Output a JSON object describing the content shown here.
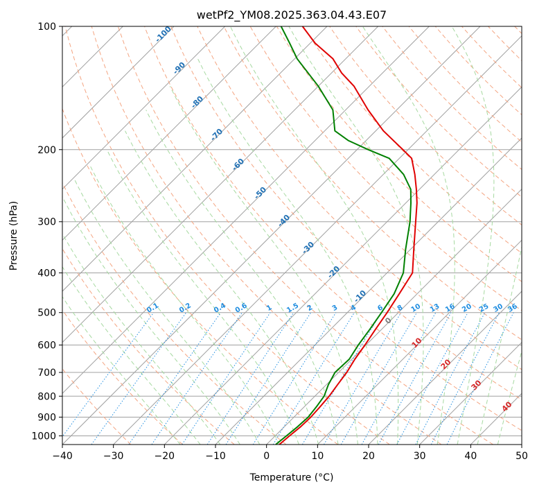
{
  "chart_data": {
    "type": "line",
    "title": "wetPf2_YM08.2025.363.04.43.E07",
    "xlabel": "Temperature (°C)",
    "ylabel": "Pressure (hPa)",
    "xlim": [
      -40,
      50
    ],
    "ylim": [
      1050,
      100
    ],
    "y_scale": "log",
    "skew": "skew-T",
    "grid": true,
    "x_ticks": [
      "-40",
      "-30",
      "-20",
      "-10",
      "0",
      "10",
      "20",
      "30",
      "40",
      "50"
    ],
    "y_ticks": [
      "100",
      "200",
      "300",
      "400",
      "500",
      "600",
      "700",
      "800",
      "900",
      "1000"
    ],
    "series": [
      {
        "color": "#e00000",
        "points": [
          [
            1050,
            2.5
          ],
          [
            1000,
            2.8
          ],
          [
            950,
            3.2
          ],
          [
            900,
            3.3
          ],
          [
            850,
            3.1
          ],
          [
            800,
            2.8
          ],
          [
            750,
            2.2
          ],
          [
            700,
            1.6
          ],
          [
            650,
            0.6
          ],
          [
            600,
            -0.2
          ],
          [
            550,
            -1.2
          ],
          [
            500,
            -2.2
          ],
          [
            450,
            -3.5
          ],
          [
            400,
            -5.0
          ],
          [
            350,
            -9.4
          ],
          [
            300,
            -14.4
          ],
          [
            270,
            -17.8
          ],
          [
            250,
            -20.6
          ],
          [
            230,
            -23.8
          ],
          [
            210,
            -27.6
          ],
          [
            200,
            -31.0
          ],
          [
            180,
            -38.5
          ],
          [
            160,
            -45.6
          ],
          [
            140,
            -53.0
          ],
          [
            130,
            -58.0
          ],
          [
            120,
            -62.5
          ],
          [
            110,
            -69.0
          ],
          [
            100,
            -74.8
          ]
        ]
      },
      {
        "color": "#008000",
        "points": [
          [
            1050,
            1.8
          ],
          [
            1000,
            2.2
          ],
          [
            950,
            2.6
          ],
          [
            900,
            2.8
          ],
          [
            850,
            2.4
          ],
          [
            800,
            1.8
          ],
          [
            750,
            0.4
          ],
          [
            700,
            -0.7
          ],
          [
            650,
            -0.5
          ],
          [
            600,
            -1.5
          ],
          [
            550,
            -2.3
          ],
          [
            500,
            -3.3
          ],
          [
            450,
            -4.5
          ],
          [
            400,
            -6.8
          ],
          [
            350,
            -11.0
          ],
          [
            300,
            -15.5
          ],
          [
            270,
            -19.0
          ],
          [
            250,
            -21.7
          ],
          [
            230,
            -26.0
          ],
          [
            210,
            -32.0
          ],
          [
            200,
            -37.8
          ],
          [
            190,
            -43.5
          ],
          [
            180,
            -48.0
          ],
          [
            160,
            -52.5
          ],
          [
            140,
            -60.0
          ],
          [
            120,
            -69.5
          ],
          [
            110,
            -74.0
          ],
          [
            100,
            -79.0
          ]
        ]
      }
    ],
    "dry_adiabat_labels": [
      "-100",
      "-90",
      "-80",
      "-70",
      "-60",
      "-50",
      "-40",
      "-30",
      "-20",
      "-10"
    ],
    "moist_adiabat_labels": [
      "0",
      "10",
      "20",
      "30",
      "40"
    ],
    "mixing_ratio_labels": [
      "0.1",
      "0.2",
      "0.4",
      "0.6",
      "1",
      "1.5",
      "2",
      "3",
      "4",
      "6",
      "8",
      "10",
      "13",
      "16",
      "20",
      "25",
      "30",
      "36"
    ],
    "colors": {
      "isotherm": "#a0a0a0",
      "dry_adiabat": "#f4a582",
      "moist_adiabat": "#a6d9a0",
      "mixing_ratio": "#1f8de0",
      "dry_label": "#2171b5",
      "moist_label": "#d62728",
      "frame": "#000000"
    }
  }
}
